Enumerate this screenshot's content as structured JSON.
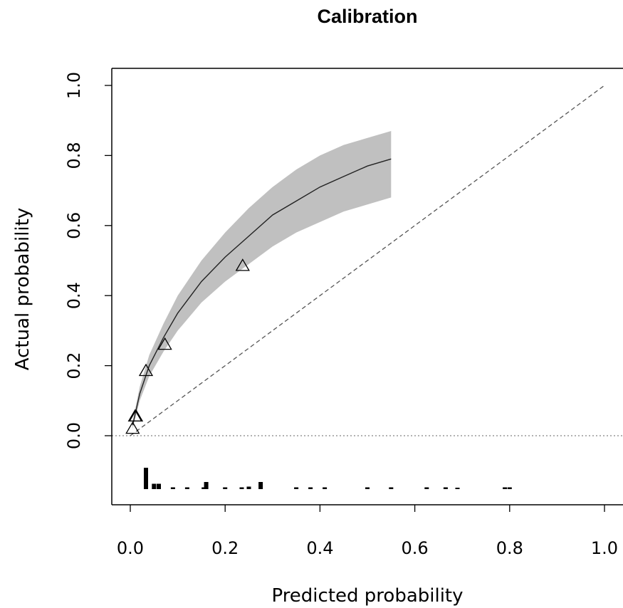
{
  "chart_data": {
    "type": "line",
    "title": "Calibration",
    "xlabel": "Predicted probability",
    "ylabel": "Actual probability",
    "xlim": [
      0,
      1
    ],
    "ylim": [
      0,
      1
    ],
    "x_ticks": [
      "0.0",
      "0.2",
      "0.4",
      "0.6",
      "0.8",
      "1.0"
    ],
    "y_ticks": [
      "0.0",
      "0.2",
      "0.4",
      "0.6",
      "0.8",
      "1.0"
    ],
    "grid": false,
    "legend": "none",
    "reference_line": {
      "style": "dashed",
      "from": [
        0,
        0
      ],
      "to": [
        1,
        1
      ]
    },
    "baseline": {
      "style": "dotted",
      "y": 0
    },
    "calibration_curve": {
      "x": [
        0.005,
        0.02,
        0.04,
        0.07,
        0.1,
        0.15,
        0.2,
        0.25,
        0.3,
        0.35,
        0.4,
        0.45,
        0.5,
        0.55
      ],
      "y": [
        0.03,
        0.12,
        0.2,
        0.28,
        0.35,
        0.44,
        0.51,
        0.57,
        0.63,
        0.67,
        0.71,
        0.74,
        0.77,
        0.79
      ],
      "ci_lower": [
        0.02,
        0.1,
        0.17,
        0.24,
        0.3,
        0.38,
        0.44,
        0.49,
        0.54,
        0.58,
        0.61,
        0.64,
        0.66,
        0.68
      ],
      "ci_upper": [
        0.04,
        0.14,
        0.23,
        0.32,
        0.4,
        0.5,
        0.58,
        0.65,
        0.71,
        0.76,
        0.8,
        0.83,
        0.85,
        0.87
      ]
    },
    "observed_points": {
      "x": [
        0.005,
        0.01,
        0.012,
        0.033,
        0.073,
        0.237
      ],
      "y": [
        0.02,
        0.055,
        0.055,
        0.185,
        0.26,
        0.485
      ]
    },
    "histogram": {
      "x": [
        0.033,
        0.05,
        0.06,
        0.09,
        0.12,
        0.155,
        0.16,
        0.2,
        0.235,
        0.25,
        0.275,
        0.35,
        0.38,
        0.41,
        0.5,
        0.55,
        0.625,
        0.665,
        0.69,
        0.79,
        0.8
      ],
      "count": [
        6,
        1.5,
        1.5,
        0.5,
        0.5,
        0.5,
        2,
        0.5,
        0.5,
        0.7,
        2,
        0.5,
        0.5,
        0.5,
        0.5,
        0.5,
        0.5,
        0.5,
        0.4,
        0.5,
        0.5
      ]
    }
  }
}
